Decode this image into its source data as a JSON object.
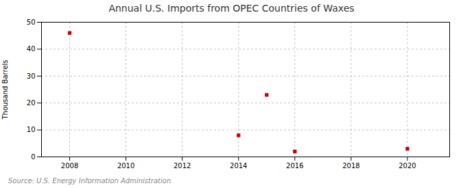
{
  "chart_data": {
    "type": "scatter",
    "title": "Annual U.S. Imports from OPEC Countries of Waxes",
    "ylabel": "Thousand Barrels",
    "source": "Source: U.S. Energy Information Administration",
    "x": [
      2008,
      2014,
      2015,
      2016,
      2020
    ],
    "values": [
      46,
      8,
      23,
      2,
      3
    ],
    "color": "#cc0000",
    "marker": "square",
    "xlim": [
      2007,
      2021.5
    ],
    "xticks": [
      2008,
      2010,
      2012,
      2014,
      2016,
      2018,
      2020
    ],
    "ylim": [
      0,
      50
    ],
    "yticks": [
      0,
      10,
      20,
      30,
      40,
      50
    ],
    "grid": true
  }
}
